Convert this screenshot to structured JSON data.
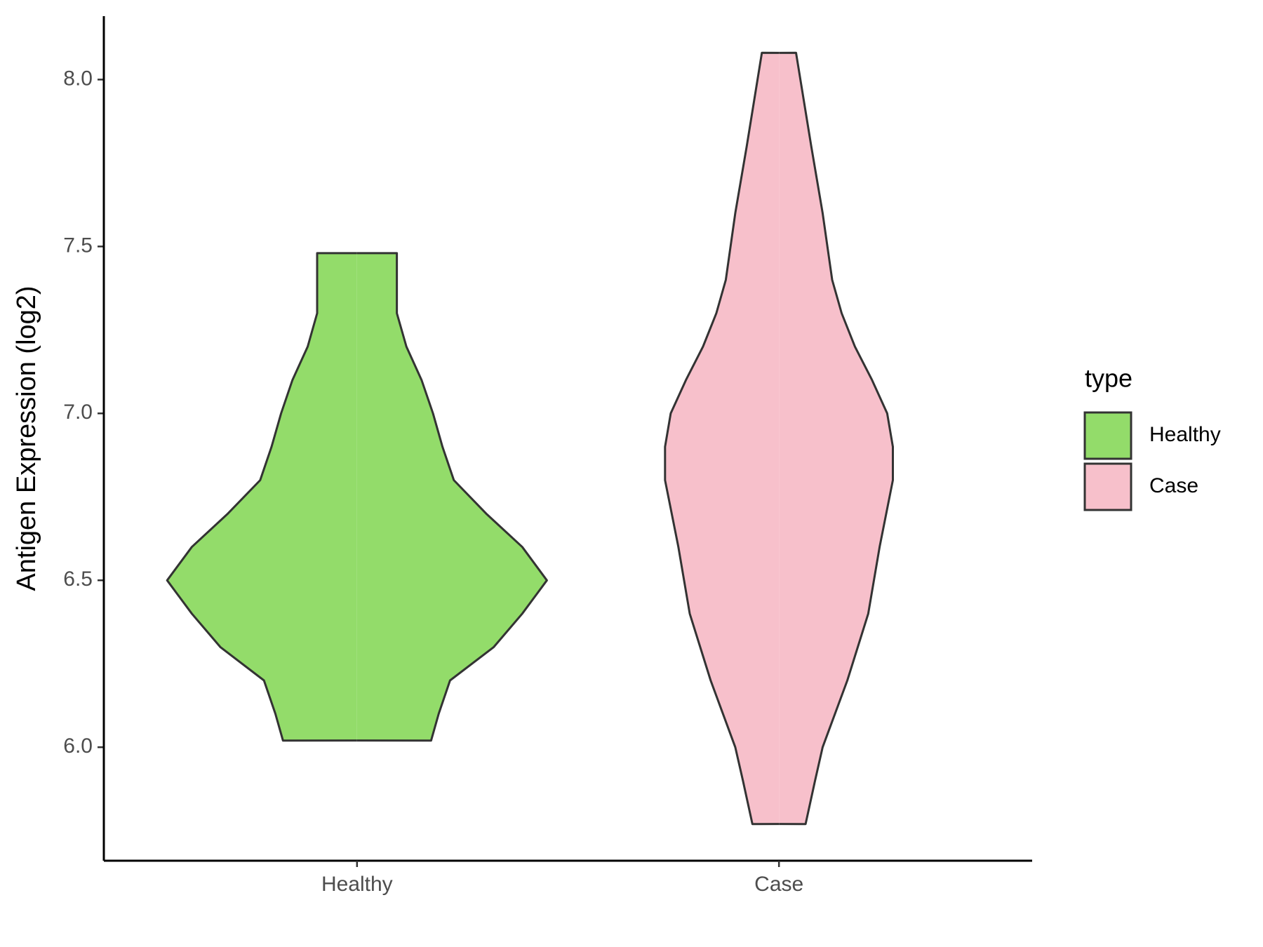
{
  "chart_data": {
    "type": "violin",
    "ylabel": "Antigen Expression (log2)",
    "legend_title": "type",
    "categories": [
      "Healthy",
      "Case"
    ],
    "series": [
      {
        "name": "Healthy",
        "color": "#93dc6a",
        "y": [
          6.02,
          6.1,
          6.2,
          6.3,
          6.4,
          6.5,
          6.6,
          6.7,
          6.8,
          6.9,
          7.0,
          7.1,
          7.2,
          7.3,
          7.4,
          7.48
        ],
        "width": [
          0.39,
          0.43,
          0.49,
          0.72,
          0.87,
          1,
          0.87,
          0.68,
          0.51,
          0.45,
          0.4,
          0.34,
          0.26,
          0.21,
          0.21,
          0.21
        ]
      },
      {
        "name": "Case",
        "color": "#f7c0cb",
        "y": [
          5.77,
          5.9,
          6.0,
          6.2,
          6.4,
          6.6,
          6.8,
          6.9,
          7.0,
          7.1,
          7.2,
          7.3,
          7.4,
          7.6,
          7.8,
          8.08
        ],
        "width": [
          0.14,
          0.19,
          0.23,
          0.36,
          0.47,
          0.53,
          0.6,
          0.6,
          0.57,
          0.49,
          0.4,
          0.33,
          0.28,
          0.23,
          0.17,
          0.09
        ]
      }
    ],
    "ylim": [
      5.66,
      8.19
    ],
    "yticks": [
      {
        "value": 6,
        "label": "6.0"
      },
      6.5,
      {
        "value": 7,
        "label": "7.0"
      },
      7.5,
      {
        "value": 8,
        "label": "8.0"
      }
    ]
  }
}
